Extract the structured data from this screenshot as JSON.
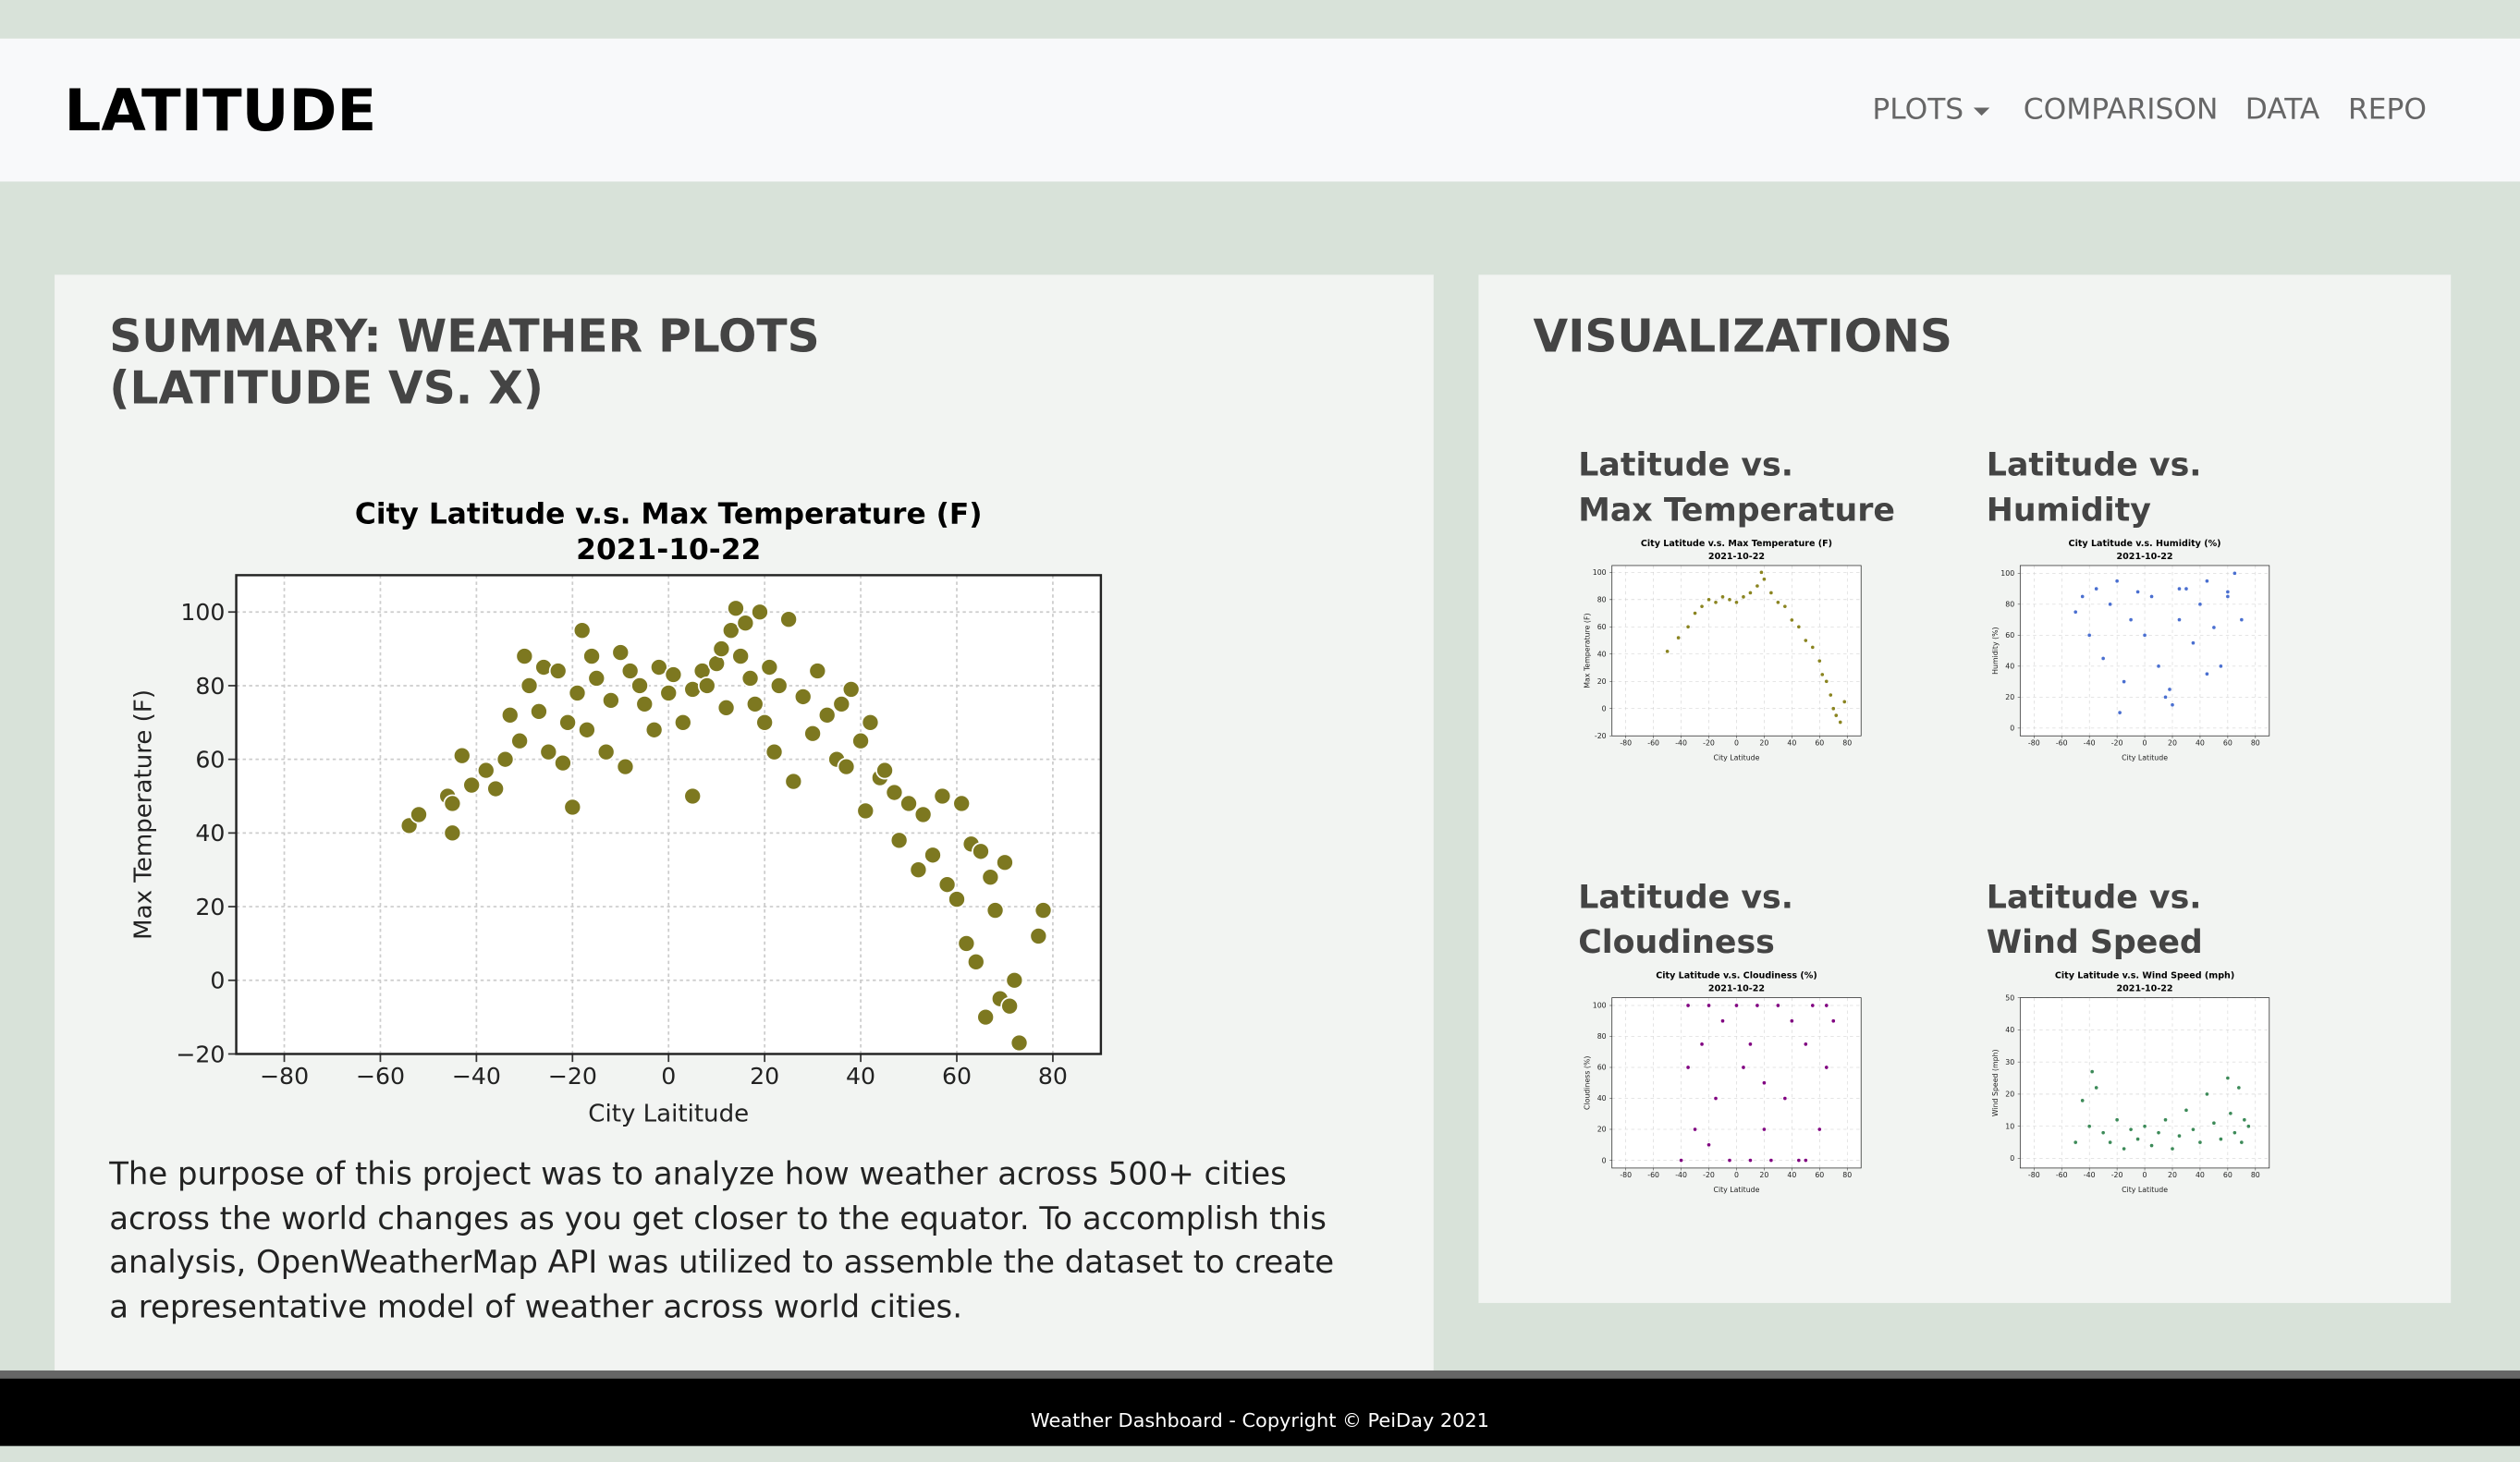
{
  "header": {
    "brand": "LATITUDE",
    "nav": [
      "PLOTS",
      "COMPARISON",
      "DATA",
      "REPO"
    ]
  },
  "summary": {
    "title": "SUMMARY: WEATHER PLOTS (LATITUDE VS. X)",
    "chart_data": {
      "type": "scatter",
      "title": "City Latitude v.s. Max Temperature (F)",
      "subtitle": "2021-10-22",
      "x_label": "City Laititude",
      "y_label": "Max Temperature (F)",
      "color": "#7d7820",
      "grid": true,
      "xlim": [
        -90,
        90
      ],
      "xticks": [
        {
          "value": -80,
          "label": "−80"
        },
        {
          "value": -60,
          "label": "−60"
        },
        {
          "value": -40,
          "label": "−40"
        },
        {
          "value": -20,
          "label": "−20"
        },
        0,
        20,
        40,
        60,
        80
      ],
      "ylim": [
        -20,
        110
      ],
      "yticks": [
        {
          "value": -20,
          "label": "−20"
        },
        0,
        20,
        40,
        60,
        80,
        100
      ],
      "x": [
        -54,
        -52,
        -46,
        -45,
        -45,
        -43,
        -41,
        -38,
        -36,
        -34,
        -33,
        -31,
        -30,
        -29,
        -27,
        -26,
        -25,
        -23,
        -22,
        -21,
        -20,
        -19,
        -18,
        -17,
        -16,
        -15,
        -13,
        -12,
        -10,
        -9,
        -8,
        -6,
        -5,
        -3,
        -2,
        0,
        1,
        3,
        5,
        5,
        7,
        8,
        10,
        11,
        12,
        13,
        14,
        15,
        16,
        17,
        18,
        19,
        20,
        21,
        22,
        23,
        25,
        26,
        28,
        30,
        31,
        33,
        35,
        36,
        37,
        38,
        40,
        41,
        42,
        44,
        45,
        47,
        48,
        50,
        52,
        53,
        55,
        57,
        58,
        60,
        61,
        62,
        63,
        64,
        65,
        66,
        67,
        68,
        69,
        70,
        71,
        72,
        73,
        77,
        78
      ],
      "y": [
        42,
        45,
        50,
        48,
        40,
        61,
        53,
        57,
        52,
        60,
        72,
        65,
        88,
        80,
        73,
        85,
        62,
        84,
        59,
        70,
        47,
        78,
        95,
        68,
        88,
        82,
        62,
        76,
        89,
        58,
        84,
        80,
        75,
        68,
        85,
        78,
        83,
        70,
        79,
        50,
        84,
        80,
        86,
        90,
        74,
        95,
        101,
        88,
        97,
        82,
        75,
        100,
        70,
        85,
        62,
        80,
        98,
        54,
        77,
        67,
        84,
        72,
        60,
        75,
        58,
        79,
        65,
        46,
        70,
        55,
        57,
        51,
        38,
        48,
        30,
        45,
        34,
        50,
        26,
        22,
        48,
        10,
        37,
        5,
        35,
        -10,
        28,
        19,
        -5,
        32,
        -7,
        0,
        -17,
        12,
        19
      ]
    },
    "paragraph": "The purpose of this project was to analyze how weather across 500+ cities across the world changes as you get closer to the equator. To accomplish this analysis, OpenWeatherMap API was utilized to assemble the dataset to create a representative model of weather across world cities."
  },
  "visualizations": {
    "title": "VISUALIZATIONS",
    "panels": [
      {
        "heading": [
          "Latitude vs.",
          "Max Temperature"
        ],
        "chart_data": {
          "type": "scatter",
          "title": "City Latitude v.s. Max Temperature (F)",
          "subtitle": "2021-10-22",
          "x_label": "City Latitude",
          "y_label": "Max Temperature (F)",
          "color": "#8a8420",
          "grid": true,
          "xlim": [
            -90,
            90
          ],
          "xticks": [
            -80,
            -60,
            -40,
            -20,
            0,
            20,
            40,
            60,
            80
          ],
          "ylim": [
            -20,
            105
          ],
          "yticks": [
            -20,
            0,
            20,
            40,
            60,
            80,
            100
          ],
          "x": [
            -50,
            -42,
            -35,
            -30,
            -25,
            -20,
            -15,
            -10,
            -5,
            0,
            5,
            10,
            15,
            18,
            20,
            25,
            30,
            35,
            40,
            45,
            50,
            55,
            60,
            62,
            65,
            68,
            70,
            72,
            75,
            78
          ],
          "y": [
            42,
            52,
            60,
            70,
            75,
            80,
            78,
            82,
            80,
            78,
            82,
            85,
            90,
            100,
            95,
            85,
            78,
            75,
            65,
            60,
            50,
            45,
            35,
            25,
            20,
            10,
            0,
            -5,
            -10,
            5
          ]
        }
      },
      {
        "heading": [
          "Latitude vs.",
          "Humidity"
        ],
        "chart_data": {
          "type": "scatter",
          "title": "City Latitude v.s. Humidity (%)",
          "subtitle": "2021-10-22",
          "x_label": "City Latitude",
          "y_label": "Humidity (%)",
          "color": "#4a6fd0",
          "grid": true,
          "xlim": [
            -90,
            90
          ],
          "xticks": [
            -80,
            -60,
            -40,
            -20,
            0,
            20,
            40,
            60,
            80
          ],
          "ylim": [
            -5,
            105
          ],
          "yticks": [
            0,
            20,
            40,
            60,
            80,
            100
          ],
          "x": [
            -50,
            -45,
            -40,
            -35,
            -30,
            -25,
            -20,
            -15,
            -10,
            -5,
            0,
            5,
            10,
            15,
            20,
            25,
            30,
            35,
            40,
            45,
            50,
            55,
            60,
            65,
            70,
            -18,
            18,
            25,
            45,
            60
          ],
          "y": [
            75,
            85,
            60,
            90,
            45,
            80,
            95,
            30,
            70,
            88,
            60,
            85,
            40,
            20,
            15,
            70,
            90,
            55,
            80,
            95,
            65,
            40,
            85,
            100,
            70,
            10,
            25,
            90,
            35,
            88
          ]
        }
      },
      {
        "heading": [
          "Latitude vs.",
          "Cloudiness"
        ],
        "chart_data": {
          "type": "scatter",
          "title": "City Latitude v.s. Cloudiness (%)",
          "subtitle": "2021-10-22",
          "x_label": "City Latitude",
          "y_label": "Cloudiness (%)",
          "color": "#800080",
          "grid": true,
          "xlim": [
            -90,
            90
          ],
          "xticks": [
            -80,
            -60,
            -40,
            -20,
            0,
            20,
            40,
            60,
            80
          ],
          "ylim": [
            -5,
            105
          ],
          "yticks": [
            0,
            20,
            40,
            60,
            80,
            100
          ],
          "x": [
            -40,
            -35,
            -30,
            -25,
            -20,
            -15,
            -10,
            -5,
            0,
            5,
            10,
            15,
            20,
            25,
            30,
            35,
            40,
            45,
            50,
            55,
            60,
            65,
            70,
            -20,
            10,
            30,
            50,
            65,
            -35,
            20
          ],
          "y": [
            0,
            100,
            20,
            75,
            100,
            40,
            90,
            0,
            100,
            60,
            75,
            100,
            20,
            0,
            100,
            40,
            90,
            0,
            75,
            100,
            20,
            60,
            90,
            10,
            0,
            100,
            0,
            100,
            60,
            50
          ]
        }
      },
      {
        "heading": [
          "Latitude vs.",
          "Wind Speed"
        ],
        "chart_data": {
          "type": "scatter",
          "title": "City Latitude v.s. Wind Speed (mph)",
          "subtitle": "2021-10-22",
          "x_label": "City Latitude",
          "y_label": "Wind Speed (mph)",
          "color": "#3c8a58",
          "grid": true,
          "xlim": [
            -90,
            90
          ],
          "xticks": [
            -80,
            -60,
            -40,
            -20,
            0,
            20,
            40,
            60,
            80
          ],
          "ylim": [
            -3,
            50
          ],
          "yticks": [
            0,
            10,
            20,
            30,
            40,
            50
          ],
          "x": [
            -50,
            -45,
            -40,
            -38,
            -35,
            -30,
            -25,
            -20,
            -15,
            -10,
            -5,
            0,
            5,
            10,
            15,
            20,
            25,
            30,
            35,
            40,
            45,
            50,
            55,
            60,
            62,
            65,
            68,
            70,
            72,
            75
          ],
          "y": [
            5,
            18,
            10,
            27,
            22,
            8,
            5,
            12,
            3,
            9,
            6,
            10,
            4,
            8,
            12,
            3,
            7,
            15,
            9,
            5,
            20,
            11,
            6,
            25,
            14,
            8,
            22,
            5,
            12,
            10
          ]
        }
      }
    ]
  },
  "footer": "Weather Dashboard - Copyright © PeiDay 2021"
}
